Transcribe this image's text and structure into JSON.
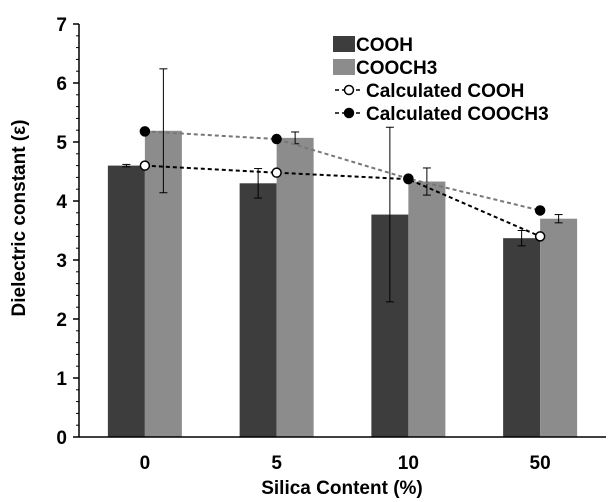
{
  "chart_data": {
    "type": "bar",
    "xlabel": "Silica Content (%)",
    "ylabel": "Dielectric constant (ε)",
    "categories": [
      "0",
      "5",
      "10",
      "50"
    ],
    "ylim": [
      0,
      7
    ],
    "yticks": [
      "0",
      "1",
      "2",
      "3",
      "4",
      "5",
      "6",
      "7"
    ],
    "grid": false,
    "legend_position": "top-right",
    "series": [
      {
        "name": "COOH",
        "kind": "bar",
        "color": "#3d3d3d",
        "values": [
          4.6,
          4.3,
          3.77,
          3.37
        ],
        "errors": [
          0.02,
          0.25,
          1.48,
          0.13
        ]
      },
      {
        "name": "COOCH3",
        "kind": "bar",
        "color": "#8c8c8c",
        "values": [
          5.19,
          5.07,
          4.33,
          3.7
        ],
        "errors": [
          1.05,
          0.1,
          0.23,
          0.07
        ]
      },
      {
        "name": "Calculated COOH",
        "kind": "line",
        "color": "#000000",
        "marker": "open-circle",
        "values": [
          4.6,
          4.48,
          4.37,
          3.4
        ]
      },
      {
        "name": "Calculated COOCH3",
        "kind": "line",
        "color": "#777777",
        "marker": "filled-circle",
        "values": [
          5.18,
          5.05,
          4.38,
          3.84
        ]
      }
    ]
  }
}
